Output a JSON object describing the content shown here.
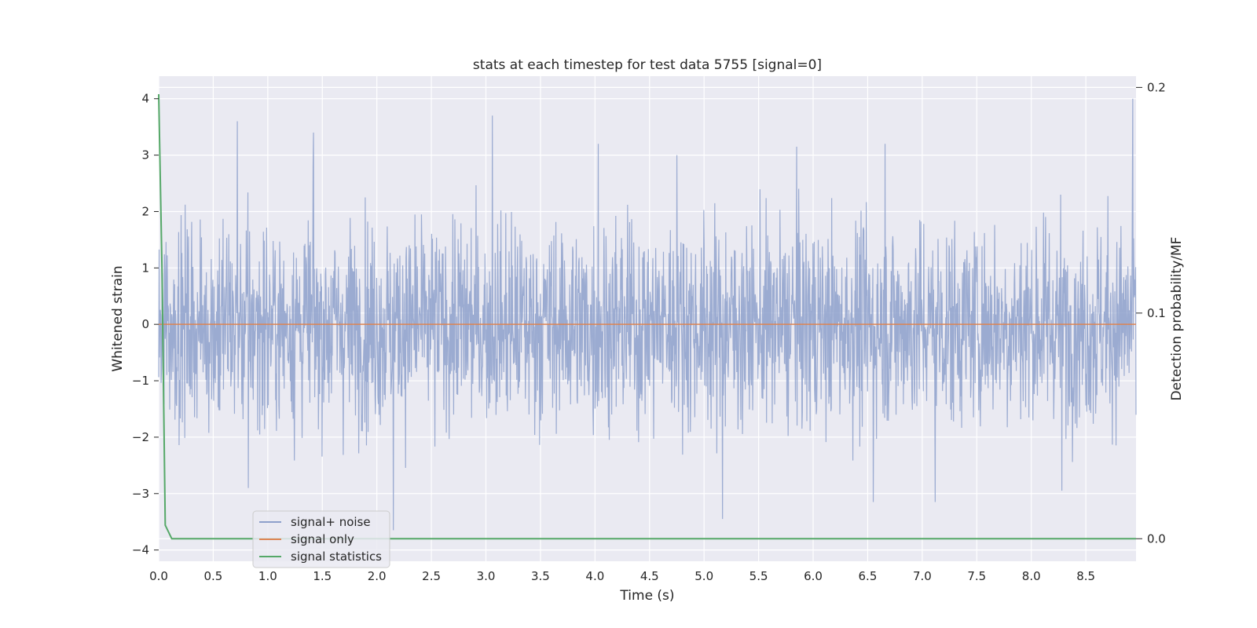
{
  "chart_data": {
    "type": "line",
    "title": "stats at each timestep for test data 5755 [signal=0]",
    "xlabel": "Time (s)",
    "ylabel_left": "Whitened strain",
    "ylabel_right": "Detection probability/MF",
    "xlim": [
      0.0,
      8.96
    ],
    "ylim_left": [
      -4.2,
      4.4
    ],
    "ylim_right": [
      -0.01,
      0.205
    ],
    "x_ticks": [
      "0.0",
      "0.5",
      "1.0",
      "1.5",
      "2.0",
      "2.5",
      "3.0",
      "3.5",
      "4.0",
      "4.5",
      "5.0",
      "5.5",
      "6.0",
      "6.5",
      "7.0",
      "7.5",
      "8.0",
      "8.5"
    ],
    "y_ticks_left": [
      "−4",
      "−3",
      "−2",
      "−1",
      "0",
      "1",
      "2",
      "3",
      "4"
    ],
    "y_ticks_right": [
      "0.0",
      "0.1",
      "0.2"
    ],
    "grid": true,
    "legend_position": "lower-left",
    "series": [
      {
        "name": "signal+ noise",
        "axis": "left",
        "color": "#8da0cb",
        "x_range": [
          0.0,
          8.96
        ],
        "sample_count": 2400,
        "approx_range": [
          -3.7,
          4.0
        ],
        "noted_peaks": [
          {
            "x": 0.72,
            "y": 3.6
          },
          {
            "x": 1.42,
            "y": 3.4
          },
          {
            "x": 3.06,
            "y": 3.7
          },
          {
            "x": 4.03,
            "y": 3.2
          },
          {
            "x": 4.75,
            "y": 3.0
          },
          {
            "x": 5.85,
            "y": 3.15
          },
          {
            "x": 6.66,
            "y": 3.2
          },
          {
            "x": 8.93,
            "y": 4.0
          }
        ],
        "noted_troughs": [
          {
            "x": 2.15,
            "y": -3.65
          },
          {
            "x": 5.17,
            "y": -3.45
          },
          {
            "x": 6.55,
            "y": -3.15
          },
          {
            "x": 7.12,
            "y": -3.15
          },
          {
            "x": 0.82,
            "y": -2.9
          },
          {
            "x": 8.28,
            "y": -2.95
          }
        ]
      },
      {
        "name": "signal only",
        "axis": "left",
        "color": "#dd8452",
        "x": [
          0.0,
          8.96
        ],
        "y": [
          0.0,
          0.0
        ]
      },
      {
        "name": "signal statistics",
        "axis": "right",
        "color": "#55a868",
        "x": [
          0.0,
          0.03,
          0.06,
          0.12,
          8.96
        ],
        "y": [
          0.197,
          0.12,
          0.006,
          0.0,
          0.0
        ]
      }
    ]
  }
}
